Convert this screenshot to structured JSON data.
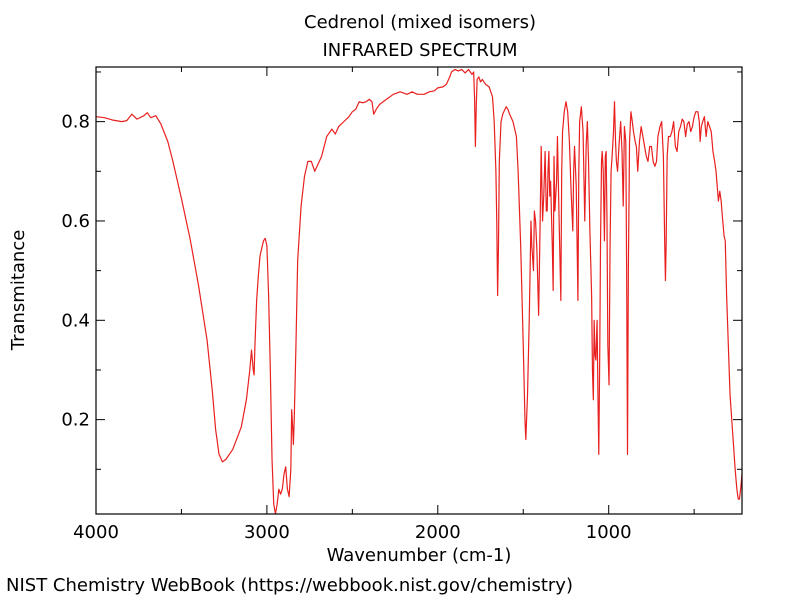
{
  "chart_data": {
    "type": "line",
    "title": "Cedrenol (mixed isomers)",
    "subtitle": "INFRARED SPECTRUM",
    "xlabel": "Wavenumber (cm-1)",
    "ylabel": "Transmitance",
    "xlim": [
      4000,
      220
    ],
    "ylim": [
      0.01,
      0.91
    ],
    "x_ticks": [
      4000,
      3000,
      2000,
      1000
    ],
    "x_tick_labels": [
      "4000",
      "3000",
      "2000",
      "1000"
    ],
    "y_ticks": [
      0.2,
      0.4,
      0.6,
      0.8
    ],
    "y_tick_labels": [
      "0.2",
      "0.4",
      "0.6",
      "0.8"
    ],
    "grid": false,
    "series": [
      {
        "color": "#e8201f",
        "points": [
          [
            4000,
            0.81
          ],
          [
            3950,
            0.808
          ],
          [
            3900,
            0.803
          ],
          [
            3850,
            0.8
          ],
          [
            3820,
            0.802
          ],
          [
            3790,
            0.815
          ],
          [
            3760,
            0.805
          ],
          [
            3720,
            0.812
          ],
          [
            3700,
            0.818
          ],
          [
            3680,
            0.808
          ],
          [
            3650,
            0.812
          ],
          [
            3620,
            0.795
          ],
          [
            3580,
            0.76
          ],
          [
            3550,
            0.72
          ],
          [
            3500,
            0.645
          ],
          [
            3450,
            0.565
          ],
          [
            3400,
            0.47
          ],
          [
            3350,
            0.36
          ],
          [
            3320,
            0.26
          ],
          [
            3300,
            0.18
          ],
          [
            3280,
            0.13
          ],
          [
            3260,
            0.115
          ],
          [
            3240,
            0.12
          ],
          [
            3200,
            0.14
          ],
          [
            3150,
            0.185
          ],
          [
            3120,
            0.24
          ],
          [
            3100,
            0.3
          ],
          [
            3090,
            0.34
          ],
          [
            3080,
            0.3
          ],
          [
            3075,
            0.29
          ],
          [
            3070,
            0.35
          ],
          [
            3060,
            0.44
          ],
          [
            3050,
            0.49
          ],
          [
            3040,
            0.53
          ],
          [
            3020,
            0.56
          ],
          [
            3010,
            0.565
          ],
          [
            3000,
            0.55
          ],
          [
            2990,
            0.45
          ],
          [
            2980,
            0.3
          ],
          [
            2970,
            0.12
          ],
          [
            2960,
            0.03
          ],
          [
            2950,
            0.01
          ],
          [
            2940,
            0.03
          ],
          [
            2930,
            0.06
          ],
          [
            2920,
            0.05
          ],
          [
            2910,
            0.06
          ],
          [
            2900,
            0.09
          ],
          [
            2890,
            0.105
          ],
          [
            2880,
            0.06
          ],
          [
            2870,
            0.045
          ],
          [
            2860,
            0.1
          ],
          [
            2855,
            0.22
          ],
          [
            2850,
            0.19
          ],
          [
            2845,
            0.15
          ],
          [
            2840,
            0.2
          ],
          [
            2830,
            0.35
          ],
          [
            2820,
            0.52
          ],
          [
            2800,
            0.63
          ],
          [
            2780,
            0.69
          ],
          [
            2760,
            0.72
          ],
          [
            2740,
            0.72
          ],
          [
            2720,
            0.7
          ],
          [
            2700,
            0.715
          ],
          [
            2680,
            0.73
          ],
          [
            2650,
            0.77
          ],
          [
            2620,
            0.785
          ],
          [
            2600,
            0.775
          ],
          [
            2580,
            0.79
          ],
          [
            2550,
            0.8
          ],
          [
            2520,
            0.81
          ],
          [
            2500,
            0.82
          ],
          [
            2480,
            0.825
          ],
          [
            2460,
            0.84
          ],
          [
            2440,
            0.838
          ],
          [
            2420,
            0.84
          ],
          [
            2400,
            0.845
          ],
          [
            2385,
            0.84
          ],
          [
            2375,
            0.815
          ],
          [
            2360,
            0.825
          ],
          [
            2340,
            0.835
          ],
          [
            2300,
            0.845
          ],
          [
            2260,
            0.855
          ],
          [
            2220,
            0.86
          ],
          [
            2180,
            0.855
          ],
          [
            2150,
            0.86
          ],
          [
            2120,
            0.855
          ],
          [
            2080,
            0.855
          ],
          [
            2050,
            0.86
          ],
          [
            2020,
            0.862
          ],
          [
            2000,
            0.868
          ],
          [
            1970,
            0.87
          ],
          [
            1950,
            0.875
          ],
          [
            1930,
            0.89
          ],
          [
            1920,
            0.9
          ],
          [
            1900,
            0.905
          ],
          [
            1880,
            0.902
          ],
          [
            1860,
            0.905
          ],
          [
            1840,
            0.898
          ],
          [
            1820,
            0.905
          ],
          [
            1800,
            0.895
          ],
          [
            1790,
            0.9
          ],
          [
            1785,
            0.85
          ],
          [
            1780,
            0.75
          ],
          [
            1775,
            0.83
          ],
          [
            1770,
            0.885
          ],
          [
            1760,
            0.89
          ],
          [
            1750,
            0.88
          ],
          [
            1740,
            0.885
          ],
          [
            1720,
            0.875
          ],
          [
            1700,
            0.87
          ],
          [
            1690,
            0.86
          ],
          [
            1680,
            0.85
          ],
          [
            1670,
            0.8
          ],
          [
            1660,
            0.7
          ],
          [
            1655,
            0.6
          ],
          [
            1650,
            0.45
          ],
          [
            1645,
            0.55
          ],
          [
            1640,
            0.72
          ],
          [
            1630,
            0.8
          ],
          [
            1620,
            0.815
          ],
          [
            1600,
            0.83
          ],
          [
            1590,
            0.825
          ],
          [
            1580,
            0.815
          ],
          [
            1560,
            0.8
          ],
          [
            1540,
            0.77
          ],
          [
            1530,
            0.7
          ],
          [
            1515,
            0.55
          ],
          [
            1500,
            0.35
          ],
          [
            1490,
            0.2
          ],
          [
            1485,
            0.16
          ],
          [
            1475,
            0.25
          ],
          [
            1465,
            0.4
          ],
          [
            1455,
            0.6
          ],
          [
            1450,
            0.55
          ],
          [
            1440,
            0.5
          ],
          [
            1435,
            0.62
          ],
          [
            1428,
            0.6
          ],
          [
            1420,
            0.54
          ],
          [
            1410,
            0.41
          ],
          [
            1402,
            0.58
          ],
          [
            1395,
            0.75
          ],
          [
            1387,
            0.6
          ],
          [
            1380,
            0.65
          ],
          [
            1372,
            0.74
          ],
          [
            1365,
            0.62
          ],
          [
            1360,
            0.62
          ],
          [
            1355,
            0.7
          ],
          [
            1350,
            0.74
          ],
          [
            1345,
            0.65
          ],
          [
            1340,
            0.68
          ],
          [
            1330,
            0.55
          ],
          [
            1325,
            0.46
          ],
          [
            1320,
            0.73
          ],
          [
            1315,
            0.62
          ],
          [
            1305,
            0.68
          ],
          [
            1300,
            0.77
          ],
          [
            1290,
            0.6
          ],
          [
            1280,
            0.44
          ],
          [
            1275,
            0.7
          ],
          [
            1270,
            0.78
          ],
          [
            1260,
            0.82
          ],
          [
            1250,
            0.84
          ],
          [
            1240,
            0.82
          ],
          [
            1230,
            0.76
          ],
          [
            1220,
            0.66
          ],
          [
            1210,
            0.58
          ],
          [
            1205,
            0.7
          ],
          [
            1200,
            0.75
          ],
          [
            1190,
            0.67
          ],
          [
            1180,
            0.44
          ],
          [
            1175,
            0.7
          ],
          [
            1170,
            0.8
          ],
          [
            1160,
            0.83
          ],
          [
            1150,
            0.78
          ],
          [
            1140,
            0.6
          ],
          [
            1132,
            0.75
          ],
          [
            1125,
            0.8
          ],
          [
            1118,
            0.72
          ],
          [
            1110,
            0.58
          ],
          [
            1100,
            0.45
          ],
          [
            1095,
            0.3
          ],
          [
            1090,
            0.24
          ],
          [
            1085,
            0.4
          ],
          [
            1080,
            0.33
          ],
          [
            1075,
            0.32
          ],
          [
            1068,
            0.4
          ],
          [
            1063,
            0.25
          ],
          [
            1058,
            0.13
          ],
          [
            1052,
            0.35
          ],
          [
            1048,
            0.55
          ],
          [
            1042,
            0.72
          ],
          [
            1038,
            0.74
          ],
          [
            1032,
            0.7
          ],
          [
            1025,
            0.56
          ],
          [
            1020,
            0.73
          ],
          [
            1015,
            0.74
          ],
          [
            1010,
            0.6
          ],
          [
            1005,
            0.35
          ],
          [
            998,
            0.27
          ],
          [
            992,
            0.55
          ],
          [
            986,
            0.7
          ],
          [
            980,
            0.73
          ],
          [
            972,
            0.78
          ],
          [
            966,
            0.84
          ],
          [
            960,
            0.76
          ],
          [
            955,
            0.72
          ],
          [
            948,
            0.7
          ],
          [
            940,
            0.75
          ],
          [
            930,
            0.8
          ],
          [
            922,
            0.74
          ],
          [
            915,
            0.63
          ],
          [
            908,
            0.79
          ],
          [
            900,
            0.76
          ],
          [
            895,
            0.5
          ],
          [
            890,
            0.13
          ],
          [
            885,
            0.5
          ],
          [
            878,
            0.76
          ],
          [
            870,
            0.82
          ],
          [
            862,
            0.8
          ],
          [
            855,
            0.78
          ],
          [
            845,
            0.76
          ],
          [
            838,
            0.75
          ],
          [
            830,
            0.7
          ],
          [
            820,
            0.76
          ],
          [
            810,
            0.79
          ],
          [
            795,
            0.76
          ],
          [
            780,
            0.73
          ],
          [
            770,
            0.72
          ],
          [
            760,
            0.75
          ],
          [
            750,
            0.75
          ],
          [
            740,
            0.72
          ],
          [
            730,
            0.71
          ],
          [
            720,
            0.72
          ],
          [
            712,
            0.77
          ],
          [
            700,
            0.79
          ],
          [
            690,
            0.8
          ],
          [
            680,
            0.73
          ],
          [
            672,
            0.55
          ],
          [
            668,
            0.48
          ],
          [
            664,
            0.55
          ],
          [
            658,
            0.73
          ],
          [
            650,
            0.77
          ],
          [
            640,
            0.77
          ],
          [
            630,
            0.78
          ],
          [
            620,
            0.8
          ],
          [
            610,
            0.75
          ],
          [
            600,
            0.74
          ],
          [
            590,
            0.78
          ],
          [
            580,
            0.79
          ],
          [
            570,
            0.805
          ],
          [
            560,
            0.8
          ],
          [
            550,
            0.77
          ],
          [
            540,
            0.795
          ],
          [
            530,
            0.8
          ],
          [
            520,
            0.78
          ],
          [
            510,
            0.79
          ],
          [
            500,
            0.81
          ],
          [
            490,
            0.82
          ],
          [
            478,
            0.82
          ],
          [
            470,
            0.8
          ],
          [
            465,
            0.76
          ],
          [
            458,
            0.79
          ],
          [
            450,
            0.8
          ],
          [
            440,
            0.81
          ],
          [
            430,
            0.77
          ],
          [
            420,
            0.8
          ],
          [
            410,
            0.79
          ],
          [
            400,
            0.78
          ],
          [
            390,
            0.74
          ],
          [
            380,
            0.72
          ],
          [
            372,
            0.7
          ],
          [
            365,
            0.67
          ],
          [
            358,
            0.64
          ],
          [
            350,
            0.66
          ],
          [
            342,
            0.64
          ],
          [
            335,
            0.61
          ],
          [
            325,
            0.57
          ],
          [
            318,
            0.56
          ],
          [
            310,
            0.45
          ],
          [
            300,
            0.35
          ],
          [
            290,
            0.25
          ],
          [
            280,
            0.2
          ],
          [
            270,
            0.15
          ],
          [
            260,
            0.1
          ],
          [
            250,
            0.06
          ],
          [
            242,
            0.04
          ],
          [
            235,
            0.04
          ],
          [
            228,
            0.06
          ],
          [
            220,
            0.09
          ]
        ]
      }
    ]
  },
  "footer": {
    "credit": "NIST Chemistry WebBook (https://webbook.nist.gov/chemistry)"
  }
}
